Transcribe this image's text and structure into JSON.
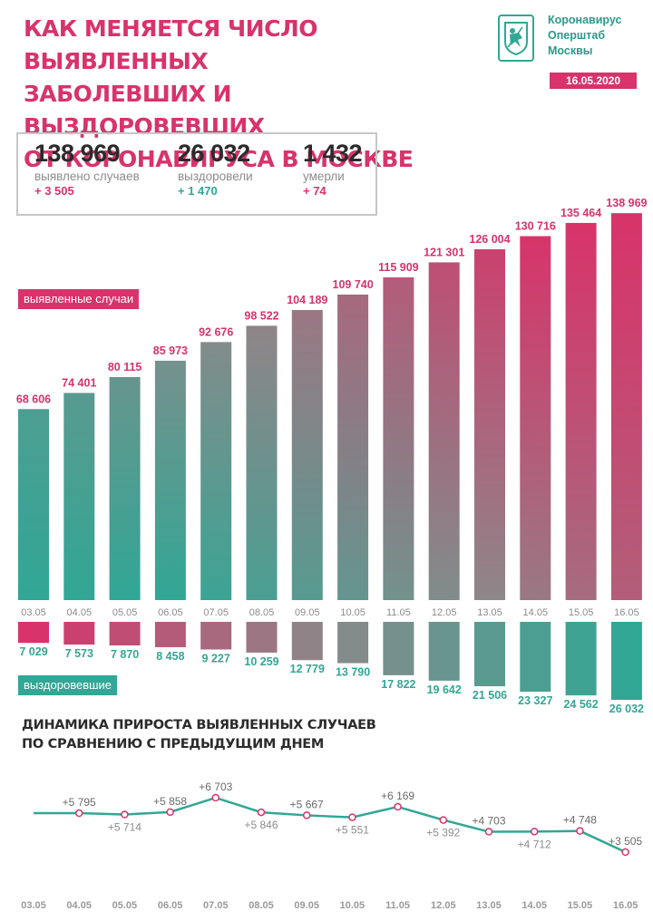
{
  "header": {
    "title_lines": [
      "КАК МЕНЯЕТСЯ ЧИСЛО ВЫЯВЛЕННЫХ",
      "ЗАБОЛЕВШИХ И ВЫЗДОРОВЕВШИХ",
      "ОТ КОРОНАВИРУСА В МОСКВЕ"
    ],
    "brand_lines": [
      "Коронавирус",
      "Оперштаб",
      "Москвы"
    ],
    "date": "16.05.2020"
  },
  "summary": [
    {
      "value": "138 969",
      "label": "выявлено случаев",
      "delta": "+ 3 505",
      "delta_color": "#d8336a"
    },
    {
      "value": "26 032",
      "label": "выздоровели",
      "delta": "+ 1 470",
      "delta_color": "#31a795"
    },
    {
      "value": "1 432",
      "label": "умерли",
      "delta": "+ 74",
      "delta_color": "#d8336a"
    }
  ],
  "labels": {
    "cases_tag": "выявленные случаи",
    "recovered_tag": "выздоровевшие",
    "dynamics_title_lines": [
      "ДИНАМИКА ПРИРОСТА ВЫЯВЛЕННЫХ СЛУЧАЕВ",
      "ПО СРАВНЕНИЮ С ПРЕДЫДУЩИМ ДНЕМ"
    ]
  },
  "colors": {
    "pink": "#d8336a",
    "teal": "#31a795",
    "gray": "#8a8a8a",
    "dark": "#2b2b2b"
  },
  "chart_data": [
    {
      "type": "bar",
      "categories": [
        "03.05",
        "04.05",
        "05.05",
        "06.05",
        "07.05",
        "08.05",
        "09.05",
        "10.05",
        "11.05",
        "12.05",
        "13.05",
        "14.05",
        "15.05",
        "16.05"
      ],
      "series": [
        {
          "name": "выявленные случаи",
          "values": [
            68606,
            74401,
            80115,
            85973,
            92676,
            98522,
            104189,
            109740,
            115909,
            121301,
            126004,
            130716,
            135464,
            138969
          ],
          "labels": [
            "68 606",
            "74 401",
            "80 115",
            "85 973",
            "92 676",
            "98 522",
            "104 189",
            "109 740",
            "115 909",
            "121 301",
            "126 004",
            "130 716",
            "135 464",
            "138 969"
          ]
        },
        {
          "name": "выздоровевшие",
          "values": [
            7029,
            7573,
            7870,
            8458,
            9227,
            10259,
            12779,
            13790,
            17822,
            19642,
            21506,
            23327,
            24562,
            26032
          ],
          "labels": [
            "7 029",
            "7 573",
            "7 870",
            "8 458",
            "9 227",
            "10 259",
            "12 779",
            "13 790",
            "17 822",
            "19 642",
            "21 506",
            "23 327",
            "24 562",
            "26 032"
          ]
        }
      ]
    },
    {
      "type": "line",
      "x": [
        "03.05",
        "04.05",
        "05.05",
        "06.05",
        "07.05",
        "08.05",
        "09.05",
        "10.05",
        "11.05",
        "12.05",
        "13.05",
        "14.05",
        "15.05",
        "16.05"
      ],
      "values": [
        null,
        5795,
        5714,
        5858,
        6703,
        5846,
        5667,
        5551,
        6169,
        5392,
        4703,
        4712,
        4748,
        3505
      ],
      "point_labels": [
        "",
        "+5 795",
        "+5 714",
        "+5 858",
        "+6 703",
        "+5 846",
        "+5 667",
        "+5 551",
        "+6 169",
        "+5 392",
        "+4 703",
        "+4 712",
        "+4 748",
        "+3 505"
      ]
    }
  ]
}
